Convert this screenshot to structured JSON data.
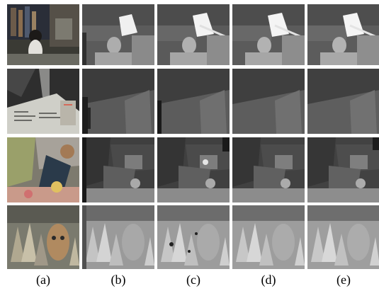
{
  "figure": {
    "columns": [
      {
        "id": "a",
        "label": "(a)"
      },
      {
        "id": "b",
        "label": "(b)"
      },
      {
        "id": "c",
        "label": "(c)"
      },
      {
        "id": "d",
        "label": "(d)"
      },
      {
        "id": "e",
        "label": "(e)"
      }
    ],
    "rows": [
      {
        "id": "scene-1"
      },
      {
        "id": "scene-2"
      },
      {
        "id": "scene-3"
      },
      {
        "id": "scene-4"
      }
    ]
  }
}
